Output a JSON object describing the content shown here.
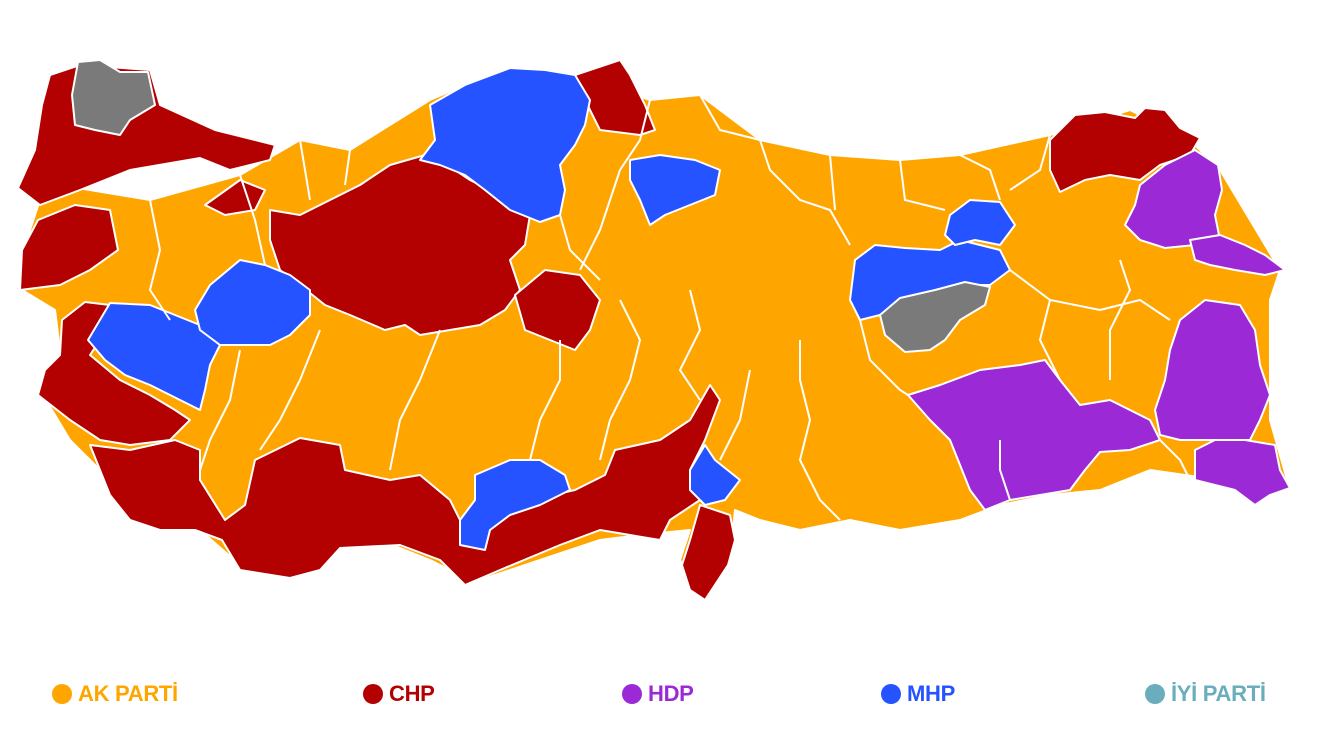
{
  "colors": {
    "ak_parti": "#ffa500",
    "chp": "#b30000",
    "hdp": "#9b2ad6",
    "mhp": "#2553ff",
    "iyi_parti": "#6aaebd",
    "other": "#7a7a7a",
    "border": "#ffffff"
  },
  "legend": [
    {
      "key": "ak_parti",
      "label": "AK PARTİ",
      "color": "#ffa500"
    },
    {
      "key": "chp",
      "label": "CHP",
      "color": "#b30000"
    },
    {
      "key": "hdp",
      "label": "HDP",
      "color": "#9b2ad6"
    },
    {
      "key": "mhp",
      "label": "MHP",
      "color": "#2553ff"
    },
    {
      "key": "iyi_parti",
      "label": "İYİ PARTİ",
      "color": "#6aaebd"
    }
  ]
}
